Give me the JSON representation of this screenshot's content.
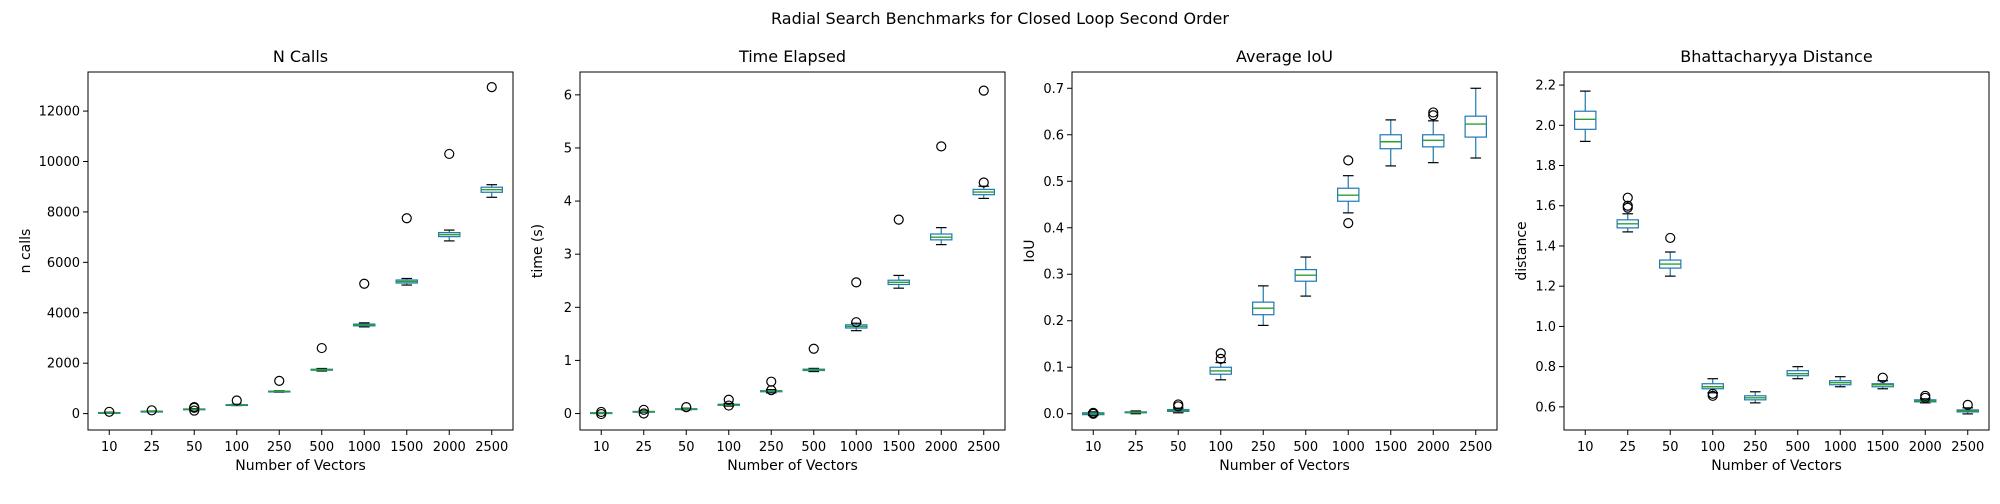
{
  "figure": {
    "title": "Radial Search Benchmarks for Closed Loop Second Order"
  },
  "style": {
    "box": "#1f77b4",
    "median": "#2ca02c",
    "outlier": "#000000"
  },
  "chart_data": [
    {
      "type": "box",
      "title": "N Calls",
      "xlabel": "Number of Vectors",
      "ylabel": "n calls",
      "categories": [
        "10",
        "25",
        "50",
        "100",
        "250",
        "500",
        "1000",
        "1500",
        "2000",
        "2500"
      ],
      "ylim": [
        -650,
        13550
      ],
      "yticks": [
        0,
        2000,
        4000,
        6000,
        8000,
        10000,
        12000
      ],
      "decimals": 0,
      "boxes": [
        {
          "whislo": 20,
          "q1": 30,
          "med": 36,
          "q3": 42,
          "whishi": 55,
          "fliers": [
            72
          ]
        },
        {
          "whislo": 75,
          "q1": 85,
          "med": 90,
          "q3": 95,
          "whishi": 105,
          "fliers": [
            130
          ]
        },
        {
          "whislo": 150,
          "q1": 165,
          "med": 175,
          "q3": 185,
          "whishi": 200,
          "fliers": [
            120,
            230,
            260
          ]
        },
        {
          "whislo": 320,
          "q1": 335,
          "med": 345,
          "q3": 355,
          "whishi": 370,
          "fliers": [
            520
          ]
        },
        {
          "whislo": 850,
          "q1": 870,
          "med": 880,
          "q3": 890,
          "whishi": 905,
          "fliers": [
            1300
          ]
        },
        {
          "whislo": 1690,
          "q1": 1720,
          "med": 1740,
          "q3": 1760,
          "whishi": 1790,
          "fliers": [
            2600
          ]
        },
        {
          "whislo": 3440,
          "q1": 3480,
          "med": 3510,
          "q3": 3550,
          "whishi": 3600,
          "fliers": [
            5150
          ]
        },
        {
          "whislo": 5100,
          "q1": 5180,
          "med": 5240,
          "q3": 5300,
          "whishi": 5360,
          "fliers": [
            7750
          ]
        },
        {
          "whislo": 6850,
          "q1": 7020,
          "med": 7100,
          "q3": 7180,
          "whishi": 7280,
          "fliers": [
            10300
          ]
        },
        {
          "whislo": 8580,
          "q1": 8780,
          "med": 8880,
          "q3": 8980,
          "whishi": 9080,
          "fliers": [
            12950
          ]
        }
      ]
    },
    {
      "type": "box",
      "title": "Time Elapsed",
      "xlabel": "Number of Vectors",
      "ylabel": "time (s)",
      "categories": [
        "10",
        "25",
        "50",
        "100",
        "250",
        "500",
        "1000",
        "1500",
        "2000",
        "2500"
      ],
      "ylim": [
        -0.31,
        6.43
      ],
      "yticks": [
        0,
        1,
        2,
        3,
        4,
        5,
        6
      ],
      "decimals": 0,
      "boxes": [
        {
          "whislo": 0.0,
          "q1": 0.005,
          "med": 0.01,
          "q3": 0.015,
          "whishi": 0.02,
          "fliers": [
            -0.01,
            0.03
          ]
        },
        {
          "whislo": 0.02,
          "q1": 0.03,
          "med": 0.035,
          "q3": 0.04,
          "whishi": 0.05,
          "fliers": [
            0.0,
            0.07
          ]
        },
        {
          "whislo": 0.07,
          "q1": 0.08,
          "med": 0.085,
          "q3": 0.09,
          "whishi": 0.1,
          "fliers": [
            0.12
          ]
        },
        {
          "whislo": 0.14,
          "q1": 0.155,
          "med": 0.165,
          "q3": 0.175,
          "whishi": 0.19,
          "fliers": [
            0.15,
            0.26
          ]
        },
        {
          "whislo": 0.39,
          "q1": 0.41,
          "med": 0.42,
          "q3": 0.43,
          "whishi": 0.45,
          "fliers": [
            0.44,
            0.6
          ]
        },
        {
          "whislo": 0.79,
          "q1": 0.81,
          "med": 0.82,
          "q3": 0.835,
          "whishi": 0.85,
          "fliers": [
            1.22
          ]
        },
        {
          "whislo": 1.56,
          "q1": 1.61,
          "med": 1.64,
          "q3": 1.67,
          "whishi": 1.7,
          "fliers": [
            1.72,
            2.47
          ]
        },
        {
          "whislo": 2.36,
          "q1": 2.43,
          "med": 2.47,
          "q3": 2.51,
          "whishi": 2.6,
          "fliers": [
            3.65
          ]
        },
        {
          "whislo": 3.18,
          "q1": 3.27,
          "med": 3.32,
          "q3": 3.38,
          "whishi": 3.5,
          "fliers": [
            5.03
          ]
        },
        {
          "whislo": 4.05,
          "q1": 4.12,
          "med": 4.17,
          "q3": 4.22,
          "whishi": 4.28,
          "fliers": [
            4.35,
            6.08
          ]
        }
      ]
    },
    {
      "type": "box",
      "title": "Average IoU",
      "xlabel": "Number of Vectors",
      "ylabel": "IoU",
      "categories": [
        "10",
        "25",
        "50",
        "100",
        "250",
        "500",
        "1000",
        "1500",
        "2000",
        "2500"
      ],
      "ylim": [
        -0.035,
        0.735
      ],
      "yticks": [
        0.0,
        0.1,
        0.2,
        0.3,
        0.4,
        0.5,
        0.6,
        0.7
      ],
      "decimals": 1,
      "boxes": [
        {
          "whislo": -0.004,
          "q1": -0.002,
          "med": 0.0,
          "q3": 0.002,
          "whishi": 0.004,
          "fliers": [
            0.0,
            0.002
          ]
        },
        {
          "whislo": 0.0,
          "q1": 0.002,
          "med": 0.003,
          "q3": 0.004,
          "whishi": 0.006,
          "fliers": []
        },
        {
          "whislo": 0.002,
          "q1": 0.005,
          "med": 0.007,
          "q3": 0.009,
          "whishi": 0.012,
          "fliers": [
            0.016,
            0.02
          ]
        },
        {
          "whislo": 0.073,
          "q1": 0.085,
          "med": 0.092,
          "q3": 0.1,
          "whishi": 0.11,
          "fliers": [
            0.118,
            0.13
          ]
        },
        {
          "whislo": 0.19,
          "q1": 0.213,
          "med": 0.227,
          "q3": 0.24,
          "whishi": 0.275,
          "fliers": []
        },
        {
          "whislo": 0.253,
          "q1": 0.285,
          "med": 0.298,
          "q3": 0.31,
          "whishi": 0.337,
          "fliers": []
        },
        {
          "whislo": 0.432,
          "q1": 0.457,
          "med": 0.47,
          "q3": 0.485,
          "whishi": 0.512,
          "fliers": [
            0.41,
            0.545
          ]
        },
        {
          "whislo": 0.533,
          "q1": 0.57,
          "med": 0.585,
          "q3": 0.6,
          "whishi": 0.632,
          "fliers": []
        },
        {
          "whislo": 0.54,
          "q1": 0.574,
          "med": 0.588,
          "q3": 0.6,
          "whishi": 0.63,
          "fliers": [
            0.642,
            0.648
          ]
        },
        {
          "whislo": 0.55,
          "q1": 0.595,
          "med": 0.623,
          "q3": 0.64,
          "whishi": 0.7,
          "fliers": []
        }
      ]
    },
    {
      "type": "box",
      "title": "Bhattacharyya Distance",
      "xlabel": "Number of Vectors",
      "ylabel": "distance",
      "categories": [
        "10",
        "25",
        "50",
        "100",
        "250",
        "500",
        "1000",
        "1500",
        "2000",
        "2500"
      ],
      "ylim": [
        0.485,
        2.265
      ],
      "yticks": [
        0.6,
        0.8,
        1.0,
        1.2,
        1.4,
        1.6,
        1.8,
        2.0,
        2.2
      ],
      "decimals": 1,
      "boxes": [
        {
          "whislo": 1.92,
          "q1": 1.98,
          "med": 2.03,
          "q3": 2.07,
          "whishi": 2.17,
          "fliers": []
        },
        {
          "whislo": 1.47,
          "q1": 1.49,
          "med": 1.51,
          "q3": 1.53,
          "whishi": 1.56,
          "fliers": [
            1.59,
            1.6,
            1.64
          ]
        },
        {
          "whislo": 1.25,
          "q1": 1.29,
          "med": 1.31,
          "q3": 1.33,
          "whishi": 1.37,
          "fliers": [
            1.44
          ]
        },
        {
          "whislo": 0.67,
          "q1": 0.69,
          "med": 0.7,
          "q3": 0.715,
          "whishi": 0.74,
          "fliers": [
            0.655,
            0.665
          ]
        },
        {
          "whislo": 0.62,
          "q1": 0.635,
          "med": 0.645,
          "q3": 0.655,
          "whishi": 0.675,
          "fliers": []
        },
        {
          "whislo": 0.74,
          "q1": 0.755,
          "med": 0.765,
          "q3": 0.78,
          "whishi": 0.8,
          "fliers": []
        },
        {
          "whislo": 0.7,
          "q1": 0.71,
          "med": 0.72,
          "q3": 0.73,
          "whishi": 0.75,
          "fliers": []
        },
        {
          "whislo": 0.69,
          "q1": 0.7,
          "med": 0.71,
          "q3": 0.715,
          "whishi": 0.73,
          "fliers": [
            0.745
          ]
        },
        {
          "whislo": 0.62,
          "q1": 0.625,
          "med": 0.63,
          "q3": 0.635,
          "whishi": 0.64,
          "fliers": [
            0.645,
            0.655
          ]
        },
        {
          "whislo": 0.565,
          "q1": 0.575,
          "med": 0.58,
          "q3": 0.585,
          "whishi": 0.595,
          "fliers": [
            0.61
          ]
        }
      ]
    }
  ]
}
